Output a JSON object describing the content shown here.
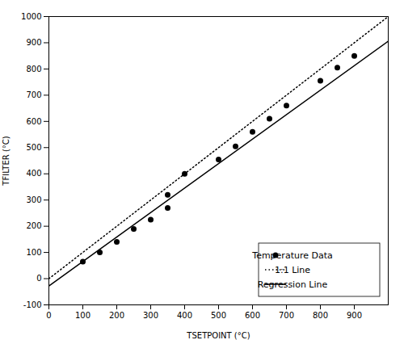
{
  "chart_data": {
    "type": "scatter",
    "x_label": "TSETPOINT (°C)",
    "y_label": "TFILTER (°C)",
    "xlim": [
      0,
      1000
    ],
    "ylim": [
      -100,
      1000
    ],
    "xticks": [
      0,
      100,
      200,
      300,
      400,
      500,
      600,
      700,
      800,
      900
    ],
    "yticks": [
      -100,
      0,
      100,
      200,
      300,
      400,
      500,
      600,
      700,
      800,
      900,
      1000
    ],
    "grid": false,
    "legend": "lower right",
    "series": [
      {
        "name": "Temperature Data",
        "type": "scatter",
        "marker": "circle",
        "color": "black",
        "x": [
          100,
          150,
          200,
          250,
          300,
          350,
          350,
          400,
          500,
          550,
          600,
          650,
          700,
          800,
          850,
          900
        ],
        "values": [
          65,
          100,
          140,
          190,
          225,
          270,
          320,
          400,
          455,
          505,
          560,
          610,
          660,
          755,
          805,
          850
        ]
      },
      {
        "name": "1:1 Line",
        "type": "line",
        "line_style": "dotted",
        "color": "black",
        "x": [
          0,
          1000
        ],
        "values": [
          0,
          1000
        ]
      },
      {
        "name": "Regression Line",
        "type": "line",
        "line_style": "solid",
        "color": "black",
        "x": [
          0,
          1000
        ],
        "values": [
          -28,
          906
        ]
      }
    ]
  }
}
